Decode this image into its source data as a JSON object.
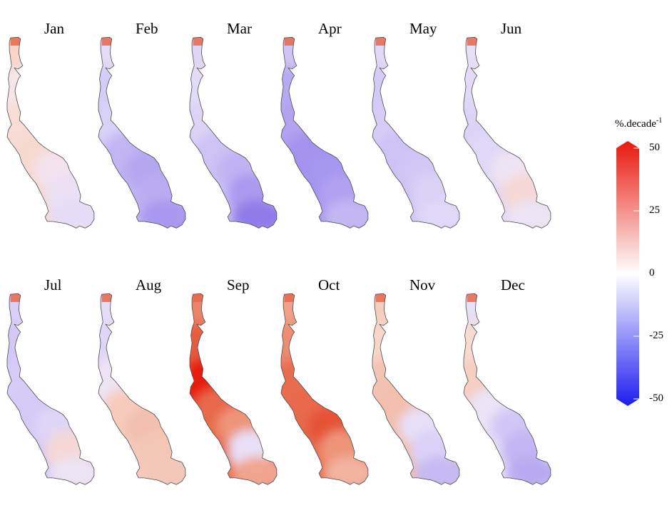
{
  "panels": [
    {
      "month": "Jan",
      "colors": [
        "#f9d4c8",
        "#f6e6ea",
        "#f8dcd5",
        "#f7d9d0",
        "#f3e2ee",
        "#ebe0f5",
        "#e5dcf7"
      ]
    },
    {
      "month": "Feb",
      "colors": [
        "#e4dcf8",
        "#d6cdf6",
        "#d9d2f7",
        "#c1b5f3",
        "#b4a6f1",
        "#b9acf2",
        "#a898ef"
      ]
    },
    {
      "month": "Mar",
      "colors": [
        "#dfd6f7",
        "#e3dcf8",
        "#dcd3f7",
        "#cdc2f5",
        "#c0b3f3",
        "#a99aef",
        "#8f7cea"
      ]
    },
    {
      "month": "Apr",
      "colors": [
        "#cfc4f5",
        "#b7a9f2",
        "#b2a3f1",
        "#a493ee",
        "#a596ef",
        "#b1a2f1",
        "#c3b7f3"
      ]
    },
    {
      "month": "May",
      "colors": [
        "#e1d9f7",
        "#d4caf6",
        "#d6ccf6",
        "#cdc2f5",
        "#d2c8f6",
        "#dad2f7",
        "#e0d8f7"
      ]
    },
    {
      "month": "Jun",
      "colors": [
        "#e6dff8",
        "#e2daf7",
        "#dcd3f7",
        "#e0d8f7",
        "#efe3f2",
        "#f5d8d6",
        "#ece3f4"
      ]
    },
    {
      "month": "Jul",
      "colors": [
        "#d9d0f7",
        "#d3c8f6",
        "#d6ccf6",
        "#d4caf6",
        "#ded5f7",
        "#f5d8d6",
        "#ede3f3"
      ]
    },
    {
      "month": "Aug",
      "colors": [
        "#e4ddf8",
        "#dfd6f7",
        "#ece4f5",
        "#f6cbbd",
        "#f3bfae",
        "#f4c6b6",
        "#f4c7b8"
      ]
    },
    {
      "month": "Sep",
      "colors": [
        "#ec8467",
        "#e65b3d",
        "#e61c10",
        "#e8694b",
        "#ee9479",
        "#e8e0f8",
        "#f0a58e"
      ]
    },
    {
      "month": "Oct",
      "colors": [
        "#f0a088",
        "#ed8c70",
        "#e86d50",
        "#e8694b",
        "#e55236",
        "#ee9479",
        "#f2b3a0"
      ]
    },
    {
      "month": "Nov",
      "colors": [
        "#f5cdbf",
        "#f6d6cb",
        "#f3c2b2",
        "#f3bfae",
        "#e7e0f8",
        "#dad1f7",
        "#c5baf4"
      ]
    },
    {
      "month": "Dec",
      "colors": [
        "#e6dff8",
        "#f7dad0",
        "#f5cfc2",
        "#ebe3f6",
        "#d1c7f6",
        "#c3b6f4",
        "#b8aaf2"
      ]
    }
  ],
  "colorbar": {
    "unit": "%.decade",
    "unit_exponent": "-1",
    "min": -50,
    "max": 50,
    "ticks": [
      {
        "value": 50,
        "label": "50"
      },
      {
        "value": 25,
        "label": "25"
      },
      {
        "value": 0,
        "label": "0"
      },
      {
        "value": -25,
        "label": "-25"
      },
      {
        "value": -50,
        "label": "-50"
      }
    ],
    "colors": {
      "low": "#1d1df0",
      "mid": "#ffffff",
      "high": "#e8180d"
    }
  }
}
